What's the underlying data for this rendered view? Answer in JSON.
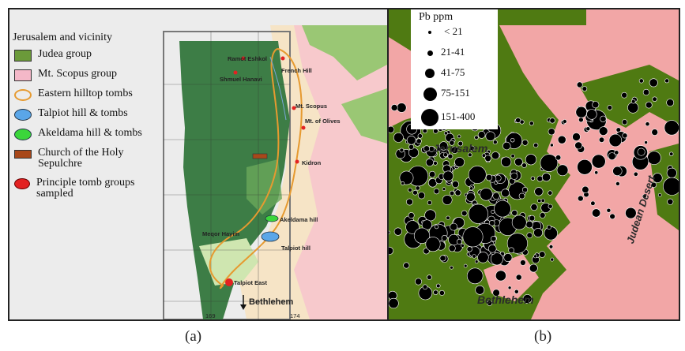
{
  "panel_a": {
    "legend_title": "Jerusalem and vicinity",
    "legend_items": [
      {
        "label": "Judea group",
        "swatch": "rect-green",
        "color": "#6b9a3a"
      },
      {
        "label": "Mt. Scopus group",
        "swatch": "rect-pink",
        "color": "#f4b8c8"
      },
      {
        "label": "Eastern hilltop tombs",
        "swatch": "ring-orange",
        "color": "#e69a30"
      },
      {
        "label": "Talpiot hill & tombs",
        "swatch": "ell-blue",
        "color": "#5aa6e8"
      },
      {
        "label": "Akeldama hill & tombs",
        "swatch": "ell-green",
        "color": "#3bd63b"
      },
      {
        "label": "Church of the Holy Sepulchre",
        "swatch": "rect-brown",
        "color": "#a8481a"
      },
      {
        "label": "Principle tomb groups sampled",
        "swatch": "dot-red",
        "color": "#e32222"
      }
    ],
    "places": {
      "ramot": "Ramot Eshkol",
      "shmuel": "Shmuel Hanavi",
      "french": "French Hill",
      "scopus": "Mt. Scopus",
      "olives": "Mt. of Olives",
      "kidron": "Kidron",
      "akeldama": "Akeldama hill",
      "meqor": "Meqor Hayim",
      "talpiot_hill": "Talpiot hill",
      "talpiot_east": "Talpiot East",
      "bethlehem": "Bethlehem",
      "grid_left": "169",
      "grid_right": "174"
    },
    "caption": "(a)"
  },
  "panel_b": {
    "legend_title": "Pb ppm",
    "legend_items": [
      {
        "label": "< 21",
        "size": "smallest"
      },
      {
        "label": "21-41",
        "size": "small"
      },
      {
        "label": "41-75",
        "size": "medium"
      },
      {
        "label": "75-151",
        "size": "large"
      },
      {
        "label": "151-400",
        "size": "largest"
      }
    ],
    "regions": {
      "jerusalem": "Jerusalem",
      "bethlehem": "Bethlehem",
      "judean_desert": "Judean Desert"
    },
    "caption": "(b)",
    "colors": {
      "judea": "#4f7a12",
      "desert": "#f2a6a6",
      "points": "#000000"
    }
  }
}
